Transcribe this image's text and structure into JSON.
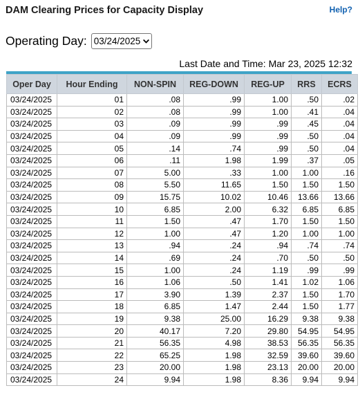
{
  "header": {
    "title": "DAM Clearing Prices for Capacity Display",
    "help_label": "Help?"
  },
  "operating_day": {
    "label": "Operating Day:",
    "selected": "03/24/2025"
  },
  "last_update": {
    "text": "Last Date and Time: Mar 23, 2025 12:32"
  },
  "table": {
    "columns": [
      "Oper Day",
      "Hour Ending",
      "NON-SPIN",
      "REG-DOWN",
      "REG-UP",
      "RRS",
      "ECRS"
    ],
    "rows": [
      [
        "03/24/2025",
        "01",
        ".08",
        ".99",
        "1.00",
        ".50",
        ".02"
      ],
      [
        "03/24/2025",
        "02",
        ".08",
        ".99",
        "1.00",
        ".41",
        ".04"
      ],
      [
        "03/24/2025",
        "03",
        ".09",
        ".99",
        ".99",
        ".45",
        ".04"
      ],
      [
        "03/24/2025",
        "04",
        ".09",
        ".99",
        ".99",
        ".50",
        ".04"
      ],
      [
        "03/24/2025",
        "05",
        ".14",
        ".74",
        ".99",
        ".50",
        ".04"
      ],
      [
        "03/24/2025",
        "06",
        ".11",
        "1.98",
        "1.99",
        ".37",
        ".05"
      ],
      [
        "03/24/2025",
        "07",
        "5.00",
        ".33",
        "1.00",
        "1.00",
        ".16"
      ],
      [
        "03/24/2025",
        "08",
        "5.50",
        "11.65",
        "1.50",
        "1.50",
        "1.50"
      ],
      [
        "03/24/2025",
        "09",
        "15.75",
        "10.02",
        "10.46",
        "13.66",
        "13.66"
      ],
      [
        "03/24/2025",
        "10",
        "6.85",
        "2.00",
        "6.32",
        "6.85",
        "6.85"
      ],
      [
        "03/24/2025",
        "11",
        "1.50",
        ".47",
        "1.70",
        "1.50",
        "1.50"
      ],
      [
        "03/24/2025",
        "12",
        "1.00",
        ".47",
        "1.20",
        "1.00",
        "1.00"
      ],
      [
        "03/24/2025",
        "13",
        ".94",
        ".24",
        ".94",
        ".74",
        ".74"
      ],
      [
        "03/24/2025",
        "14",
        ".69",
        ".24",
        ".70",
        ".50",
        ".50"
      ],
      [
        "03/24/2025",
        "15",
        "1.00",
        ".24",
        "1.19",
        ".99",
        ".99"
      ],
      [
        "03/24/2025",
        "16",
        "1.06",
        ".50",
        "1.41",
        "1.02",
        "1.06"
      ],
      [
        "03/24/2025",
        "17",
        "3.90",
        "1.39",
        "2.37",
        "1.50",
        "1.70"
      ],
      [
        "03/24/2025",
        "18",
        "6.85",
        "1.47",
        "2.44",
        "1.50",
        "1.77"
      ],
      [
        "03/24/2025",
        "19",
        "9.38",
        "25.00",
        "16.29",
        "9.38",
        "9.38"
      ],
      [
        "03/24/2025",
        "20",
        "40.17",
        "7.20",
        "29.80",
        "54.95",
        "54.95"
      ],
      [
        "03/24/2025",
        "21",
        "56.35",
        "4.98",
        "38.53",
        "56.35",
        "56.35"
      ],
      [
        "03/24/2025",
        "22",
        "65.25",
        "1.98",
        "32.59",
        "39.60",
        "39.60"
      ],
      [
        "03/24/2025",
        "23",
        "20.00",
        "1.98",
        "23.13",
        "20.00",
        "20.00"
      ],
      [
        "03/24/2025",
        "24",
        "9.94",
        "1.98",
        "8.36",
        "9.94",
        "9.94"
      ]
    ]
  },
  "colors": {
    "accent_bar": "#3fa3c7",
    "header_bg": "#cfd6de",
    "link": "#1060b0"
  },
  "icons": {
    "select_arrow": "chevron-down-icon"
  }
}
